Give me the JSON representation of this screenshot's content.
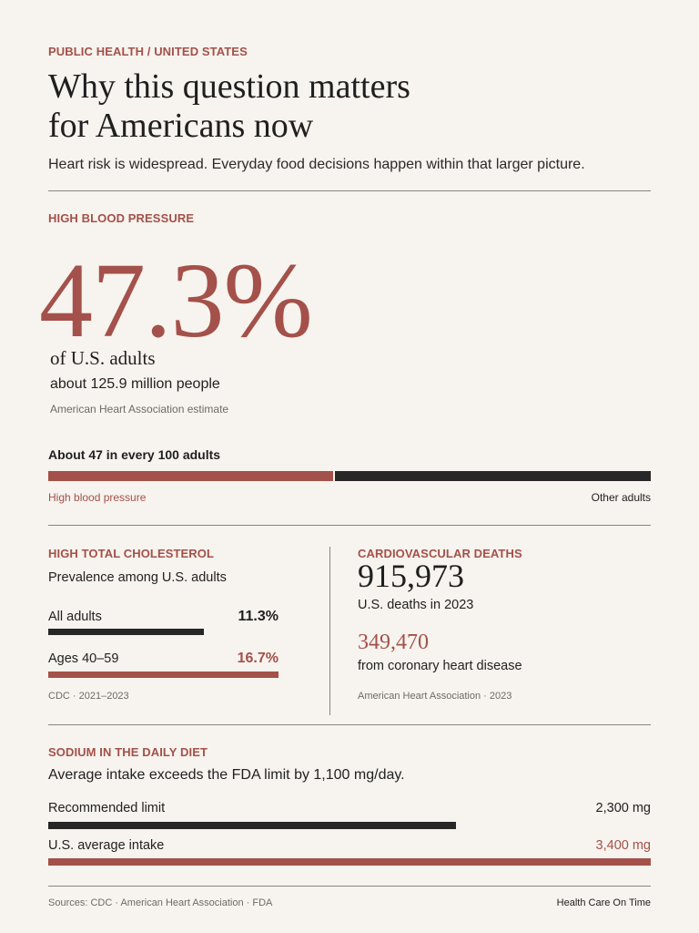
{
  "header": {
    "kicker": "PUBLIC HEALTH / UNITED STATES",
    "title_line1": "Why this question matters",
    "title_line2": "for Americans now",
    "subtitle": "Heart risk is widespread. Everyday food decisions happen within that larger picture."
  },
  "blood_pressure": {
    "label": "HIGH BLOOD PRESSURE",
    "stat": "47.3%",
    "stat_unit": "of U.S. adults",
    "people": "about 125.9 million people",
    "source": "American Heart Association estimate",
    "bar_title": "About 47 in every 100 adults",
    "bar_label_left": "High blood pressure",
    "bar_label_right": "Other adults",
    "bar_fraction": 0.473
  },
  "cholesterol": {
    "label": "HIGH TOTAL CHOLESTEROL",
    "subtitle": "Prevalence among U.S. adults",
    "rows": [
      {
        "label": "All adults",
        "value": "11.3%",
        "fraction": 0.677
      },
      {
        "label": "Ages 40–59",
        "value": "16.7%",
        "fraction": 1.0
      }
    ],
    "source": "CDC · 2021–2023"
  },
  "deaths": {
    "label": "CARDIOVASCULAR DEATHS",
    "number": "915,973",
    "number_sub": "U.S. deaths in 2023",
    "chd_number": "349,470",
    "chd_sub": "from coronary heart disease",
    "source": "American Heart Association · 2023"
  },
  "sodium": {
    "label": "SODIUM IN THE DAILY DIET",
    "subtitle": "Average intake exceeds the FDA limit by 1,100 mg/day.",
    "rows": [
      {
        "label": "Recommended limit",
        "value": "2,300 mg",
        "fraction": 0.676
      },
      {
        "label": "U.S. average intake",
        "value": "3,400 mg",
        "fraction": 1.0
      }
    ]
  },
  "footer": {
    "sources": "Sources: CDC · American Heart Association · FDA",
    "brand": "Health Care On Time"
  },
  "colors": {
    "accent": "#a3514a",
    "dark": "#262726",
    "background": "#f7f3ee"
  }
}
